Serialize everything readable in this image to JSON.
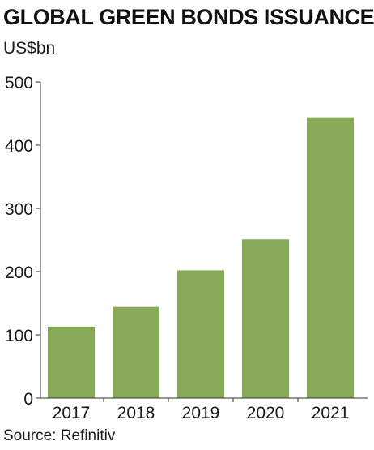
{
  "chart_data": {
    "type": "bar",
    "title": "GLOBAL GREEN BONDS ISSUANCE",
    "ylabel": "US$bn",
    "xlabel": "",
    "source": "Source: Refinitiv",
    "categories": [
      "2017",
      "2018",
      "2019",
      "2020",
      "2021"
    ],
    "values": [
      113,
      144,
      202,
      251,
      444
    ],
    "ylim": [
      0,
      500
    ],
    "yticks": [
      0,
      100,
      200,
      300,
      400,
      500
    ],
    "bar_color": "#88a957",
    "grid": false,
    "legend": "none"
  }
}
